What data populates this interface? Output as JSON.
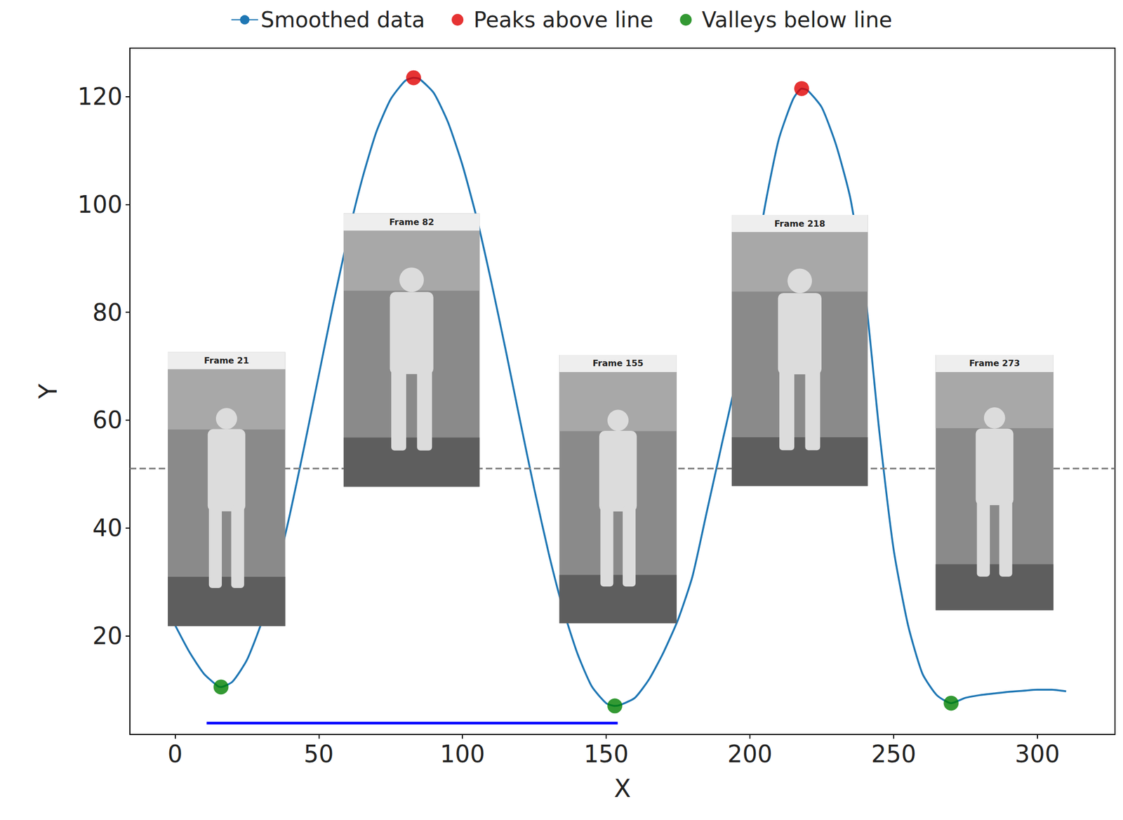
{
  "chart_data": {
    "type": "line",
    "x_label": "X",
    "y_label": "Y",
    "xlim": [
      -15.7,
      327
    ],
    "ylim": [
      1.7,
      129
    ],
    "xticks": [
      0,
      50,
      100,
      150,
      200,
      250,
      300
    ],
    "yticks": [
      20,
      40,
      60,
      80,
      100,
      120
    ],
    "grid": false,
    "legend": "top",
    "series": [
      {
        "name": "Smoothed data",
        "type": "line",
        "color": "#1f77b4",
        "x": [
          0,
          5,
          10,
          15,
          16,
          20,
          25,
          30,
          35,
          40,
          45,
          50,
          55,
          60,
          65,
          70,
          75,
          80,
          83,
          85,
          90,
          95,
          100,
          105,
          110,
          115,
          120,
          125,
          130,
          135,
          140,
          145,
          150,
          153,
          155,
          160,
          165,
          170,
          175,
          180,
          185,
          190,
          195,
          200,
          205,
          210,
          215,
          218,
          220,
          225,
          230,
          235,
          240,
          245,
          250,
          255,
          260,
          265,
          270,
          275,
          280,
          285,
          290,
          295,
          300,
          305,
          310
        ],
        "values": [
          22,
          17,
          13,
          10.6,
          10.5,
          11.5,
          15.5,
          22.3,
          31.5,
          42.6,
          55.2,
          68.3,
          81.4,
          93.7,
          104.5,
          113.4,
          119.5,
          122.9,
          123.5,
          123.3,
          120.7,
          115.2,
          107.3,
          97.4,
          85.7,
          73.1,
          60,
          47.2,
          35.3,
          25,
          16.7,
          10.6,
          7.5,
          7,
          7.2,
          8.5,
          12,
          17,
          23,
          31,
          43,
          55,
          67,
          82,
          99,
          112,
          119.5,
          121.5,
          121.2,
          118,
          111,
          101,
          84,
          58,
          36,
          22,
          13,
          9,
          7.5,
          8.5,
          9,
          9.3,
          9.6,
          9.8,
          10,
          10,
          9.7
        ]
      },
      {
        "name": "Peaks above line",
        "type": "scatter",
        "color": "#e00000",
        "marker": "circle",
        "x": [
          83,
          218
        ],
        "values": [
          123.5,
          121.5
        ]
      },
      {
        "name": "Valleys below line",
        "type": "scatter",
        "color": "#008000",
        "marker": "circle",
        "x": [
          16,
          153,
          270
        ],
        "values": [
          10.5,
          7,
          7.5
        ]
      }
    ],
    "threshold": {
      "value": 51,
      "color": "#808080",
      "line_style": "dashed"
    },
    "span": {
      "x": [
        11,
        154
      ],
      "y": 3.8,
      "color": "#0000ff"
    },
    "frames": [
      "Frame 21",
      "Frame 82",
      "Frame 155",
      "Frame 218",
      "Frame 273"
    ]
  }
}
